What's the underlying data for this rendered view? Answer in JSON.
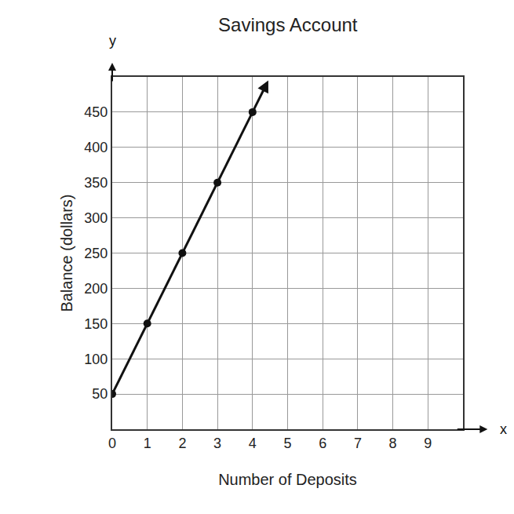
{
  "chart_data": {
    "type": "line",
    "title": "Savings Account",
    "x_label": "Number of Deposits",
    "y_label": "Balance (dollars)",
    "x": [
      0,
      1,
      2,
      3,
      4
    ],
    "values": [
      50,
      150,
      250,
      350,
      450
    ],
    "color": "#111111",
    "marker": "circle",
    "xlim": [
      0,
      10
    ],
    "xticks": [
      0,
      1,
      2,
      3,
      4,
      5,
      6,
      7,
      8,
      9
    ],
    "ylim": [
      0,
      500
    ],
    "yticks": [
      50,
      100,
      150,
      200,
      250,
      300,
      350,
      400,
      450
    ],
    "grid": true,
    "annotations": [
      "y",
      "x"
    ]
  }
}
